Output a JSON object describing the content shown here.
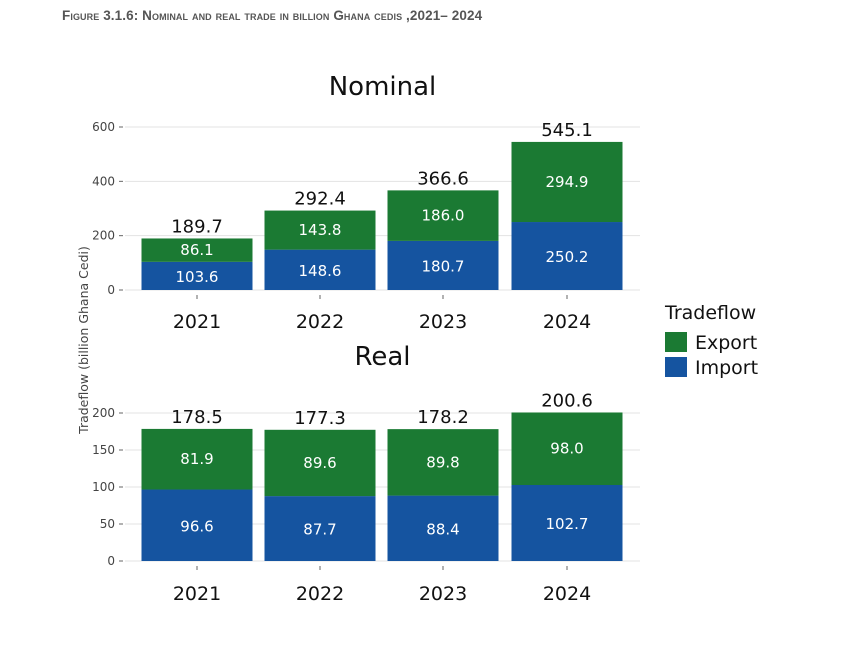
{
  "caption": "Figure 3.1.6: Nominal and real trade in billion Ghana cedis ,2021– 2024",
  "colors": {
    "export": "#1b7a33",
    "import": "#1554a0",
    "grid": "#e3e3e3"
  },
  "y_axis_label": "Tradeflow (billion Ghana Cedi)",
  "legend": {
    "title": "Tradeflow",
    "items": [
      "Export",
      "Import"
    ]
  },
  "chart_data": [
    {
      "type": "bar",
      "stacked": true,
      "title": "Nominal",
      "categories": [
        "2021",
        "2022",
        "2023",
        "2024"
      ],
      "series": [
        {
          "name": "Import",
          "values": [
            103.6,
            148.6,
            180.7,
            250.2
          ]
        },
        {
          "name": "Export",
          "values": [
            86.1,
            143.8,
            186.0,
            294.9
          ]
        }
      ],
      "totals": [
        189.7,
        292.4,
        366.6,
        545.1
      ],
      "yticks": [
        0,
        200,
        400,
        600
      ],
      "ylim": [
        0,
        600
      ]
    },
    {
      "type": "bar",
      "stacked": true,
      "title": "Real",
      "categories": [
        "2021",
        "2022",
        "2023",
        "2024"
      ],
      "series": [
        {
          "name": "Import",
          "values": [
            96.6,
            87.7,
            88.4,
            102.7
          ]
        },
        {
          "name": "Export",
          "values": [
            81.9,
            89.6,
            89.8,
            98.0
          ]
        }
      ],
      "totals": [
        178.5,
        177.3,
        178.2,
        200.6
      ],
      "yticks": [
        0,
        50,
        100,
        150,
        200
      ],
      "ylim": [
        0,
        200
      ]
    }
  ]
}
